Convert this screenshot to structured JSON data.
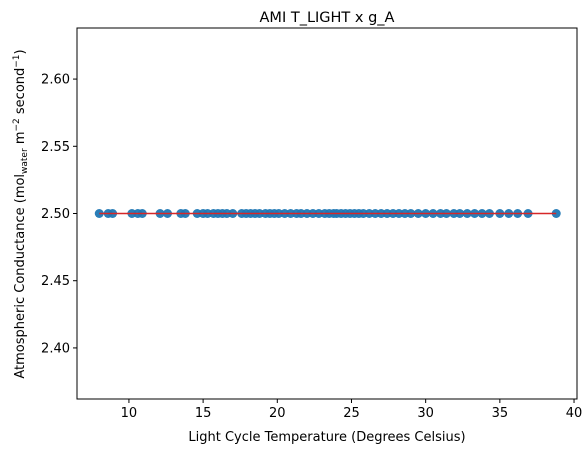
{
  "chart_data": {
    "type": "scatter",
    "title": "AMI T_LIGHT x g_A",
    "xlabel": "Light Cycle Temperature (Degrees Celsius)",
    "ylabel": {
      "main": "Atmospheric Conductance (mol",
      "sub": "water",
      "mid1": " m",
      "sup1": "−2",
      "mid2": " second",
      "sup2": "−1",
      "end": ")"
    },
    "xlim": [
      6.5,
      40.2
    ],
    "ylim": [
      2.362,
      2.638
    ],
    "xticks": [
      10,
      15,
      20,
      25,
      30,
      35,
      40
    ],
    "yticks": [
      2.4,
      2.45,
      2.5,
      2.55,
      2.6
    ],
    "grid": false,
    "legend": "none",
    "colors": {
      "points": "#1f77b4",
      "fit_line": "#d62728"
    },
    "fit_line": {
      "x": [
        8.0,
        38.8
      ],
      "y": [
        2.5,
        2.5
      ]
    },
    "series": [
      {
        "y_constant": 2.5,
        "x": [
          8.0,
          8.6,
          8.9,
          10.2,
          10.6,
          10.9,
          12.1,
          12.6,
          13.5,
          13.8,
          14.6,
          15.0,
          15.3,
          15.7,
          16.0,
          16.3,
          16.6,
          17.0,
          17.6,
          17.9,
          18.2,
          18.5,
          18.8,
          19.2,
          19.5,
          19.8,
          20.1,
          20.5,
          20.9,
          21.3,
          21.6,
          22.0,
          22.4,
          22.8,
          23.2,
          23.5,
          23.8,
          24.0,
          24.3,
          24.6,
          24.9,
          25.2,
          25.5,
          25.8,
          26.2,
          26.6,
          27.0,
          27.4,
          27.8,
          28.2,
          28.6,
          29.0,
          29.5,
          30.0,
          30.5,
          31.0,
          31.4,
          31.9,
          32.3,
          32.8,
          33.3,
          33.8,
          34.3,
          35.0,
          35.6,
          36.2,
          36.9,
          38.8
        ]
      }
    ]
  }
}
